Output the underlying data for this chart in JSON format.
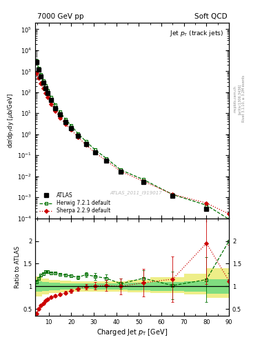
{
  "title_left": "7000 GeV pp",
  "title_right": "Soft QCD",
  "plot_title": "Jet p$_T$ (track jets)",
  "xlabel": "Charged Jet p$_T$ [GeV]",
  "ylabel_main": "d$\\sigma$/dp$_{T}$dy [$\\mu$b/GeV]",
  "ylabel_ratio": "Ratio to ATLAS",
  "right_label_top": "Rivet 3.1.10, ≥ 3.2M events",
  "right_label_bot": "[arXiv:1306.3436]",
  "right_label_site": "mcplots.cern.ch",
  "watermark": "ATLAS_2011_I919017",
  "atlas_pt": [
    4.5,
    5.5,
    6.5,
    7.5,
    8.5,
    9.5,
    11.0,
    13.0,
    15.0,
    17.5,
    20.0,
    23.0,
    26.5,
    30.5,
    35.5,
    42.0,
    52.0,
    65.0,
    80.0
  ],
  "atlas_val": [
    2800,
    1200,
    580,
    290,
    160,
    95,
    43,
    18,
    8.5,
    3.8,
    1.9,
    0.82,
    0.34,
    0.14,
    0.057,
    0.017,
    0.0055,
    0.0012,
    0.00028
  ],
  "atlas_yerr_lo": [
    280,
    120,
    58,
    29,
    16,
    9.5,
    4.3,
    1.8,
    0.85,
    0.38,
    0.19,
    0.082,
    0.034,
    0.014,
    0.0057,
    0.0017,
    0.00055,
    0.00012,
    2.8e-05
  ],
  "atlas_yerr_hi": [
    280,
    120,
    58,
    29,
    16,
    9.5,
    4.3,
    1.8,
    0.85,
    0.38,
    0.19,
    0.082,
    0.034,
    0.014,
    0.0057,
    0.0017,
    0.00055,
    0.00012,
    2.8e-05
  ],
  "herwig_pt": [
    4.5,
    5.5,
    6.5,
    7.5,
    8.5,
    9.5,
    11.0,
    13.0,
    15.0,
    17.5,
    20.0,
    23.0,
    26.5,
    30.5,
    35.5,
    42.0,
    52.0,
    65.0,
    80.0,
    90.0
  ],
  "herwig_val": [
    3200,
    1430,
    710,
    370,
    210,
    125,
    57,
    24.5,
    11.5,
    5.1,
    2.55,
    1.08,
    0.46,
    0.185,
    0.072,
    0.02,
    0.007,
    0.00135,
    0.00042,
    9e-05
  ],
  "sherpa_pt": [
    4.5,
    5.5,
    6.5,
    7.5,
    8.5,
    9.5,
    11.0,
    13.0,
    15.0,
    17.5,
    20.0,
    23.0,
    26.5,
    30.5,
    35.5,
    42.0,
    52.0,
    65.0,
    80.0,
    90.0
  ],
  "sherpa_val": [
    800,
    490,
    270,
    150,
    90,
    57,
    27,
    12.5,
    6.2,
    2.95,
    1.62,
    0.73,
    0.31,
    0.135,
    0.056,
    0.017,
    0.0058,
    0.00138,
    0.00053,
    0.00016
  ],
  "herwig_ratio_pt": [
    4.5,
    5.5,
    6.5,
    7.5,
    8.5,
    9.5,
    11.0,
    13.0,
    15.0,
    17.5,
    20.0,
    23.0,
    26.5,
    30.5,
    35.5,
    42.0,
    52.0,
    65.0,
    80.0,
    90.0
  ],
  "herwig_ratio_val": [
    1.1,
    1.18,
    1.25,
    1.28,
    1.32,
    1.32,
    1.3,
    1.3,
    1.27,
    1.25,
    1.23,
    1.2,
    1.26,
    1.22,
    1.18,
    1.06,
    1.18,
    1.02,
    1.15,
    2.0
  ],
  "herwig_ratio_err": [
    0.04,
    0.03,
    0.03,
    0.03,
    0.03,
    0.03,
    0.03,
    0.03,
    0.03,
    0.03,
    0.03,
    0.04,
    0.05,
    0.07,
    0.09,
    0.12,
    0.18,
    0.3,
    0.5,
    0.7
  ],
  "sherpa_ratio_pt": [
    4.5,
    5.5,
    6.5,
    7.5,
    8.5,
    9.5,
    11.0,
    13.0,
    15.0,
    17.5,
    20.0,
    23.0,
    26.5,
    30.5,
    35.5,
    42.0,
    52.0,
    65.0,
    80.0,
    90.0
  ],
  "sherpa_ratio_val": [
    0.4,
    0.5,
    0.58,
    0.63,
    0.68,
    0.72,
    0.76,
    0.79,
    0.82,
    0.86,
    0.9,
    0.95,
    0.99,
    1.01,
    1.02,
    1.0,
    1.08,
    1.16,
    1.95,
    1.12
  ],
  "sherpa_ratio_err": [
    0.04,
    0.03,
    0.03,
    0.03,
    0.03,
    0.03,
    0.03,
    0.03,
    0.03,
    0.04,
    0.04,
    0.05,
    0.06,
    0.08,
    0.12,
    0.18,
    0.3,
    0.5,
    0.9,
    0.8
  ],
  "band_steps": [
    4,
    7,
    10,
    15,
    20,
    30,
    45,
    55,
    70,
    80,
    90
  ],
  "band_outer_lo": [
    0.78,
    0.82,
    0.85,
    0.87,
    0.88,
    0.88,
    0.87,
    0.85,
    0.82,
    0.75,
    0.65
  ],
  "band_outer_hi": [
    1.22,
    1.18,
    1.15,
    1.13,
    1.12,
    1.12,
    1.15,
    1.2,
    1.28,
    1.4,
    1.6
  ],
  "band_inner_lo": [
    0.88,
    0.9,
    0.92,
    0.93,
    0.94,
    0.93,
    0.92,
    0.9,
    0.88,
    0.84,
    0.8
  ],
  "band_inner_hi": [
    1.12,
    1.1,
    1.08,
    1.07,
    1.06,
    1.07,
    1.08,
    1.1,
    1.12,
    1.16,
    1.2
  ],
  "xlim": [
    4,
    90
  ],
  "ylim_main": [
    0.0001,
    200000.0
  ],
  "ylim_ratio": [
    0.35,
    2.5
  ],
  "yticks_ratio": [
    0.5,
    1.0,
    1.5,
    2.0
  ],
  "atlas_color": "#000000",
  "herwig_color": "#007000",
  "sherpa_color": "#cc0000",
  "band_inner_color": "#80dd80",
  "band_outer_color": "#eeee88",
  "bg_color": "#ffffff"
}
